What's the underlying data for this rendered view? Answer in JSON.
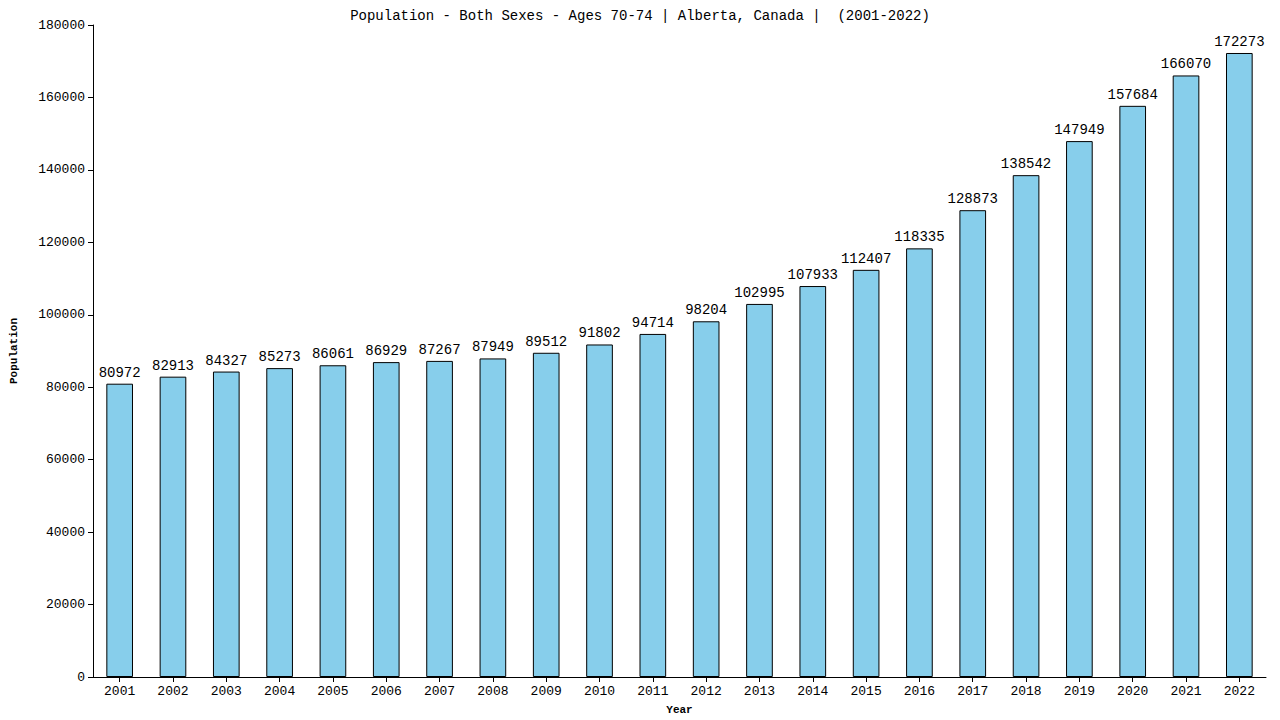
{
  "chart_data": {
    "type": "bar",
    "title": "Population - Both Sexes - Ages 70-74 | Alberta, Canada |  (2001-2022)",
    "x_label": "Year",
    "y_label": "Population",
    "categories": [
      "2001",
      "2002",
      "2003",
      "2004",
      "2005",
      "2006",
      "2007",
      "2008",
      "2009",
      "2010",
      "2011",
      "2012",
      "2013",
      "2014",
      "2015",
      "2016",
      "2017",
      "2018",
      "2019",
      "2020",
      "2021",
      "2022"
    ],
    "values": [
      80972,
      82913,
      84327,
      85273,
      86061,
      86929,
      87267,
      87949,
      89512,
      91802,
      94714,
      98204,
      102995,
      107933,
      112407,
      118335,
      128873,
      138542,
      147949,
      157684,
      166070,
      172273
    ],
    "color": "#87ceeb",
    "ylim": [
      0,
      180000
    ],
    "yticks": [
      0,
      20000,
      40000,
      60000,
      80000,
      100000,
      120000,
      140000,
      160000,
      180000
    ],
    "grid": false,
    "data_labels": true
  }
}
